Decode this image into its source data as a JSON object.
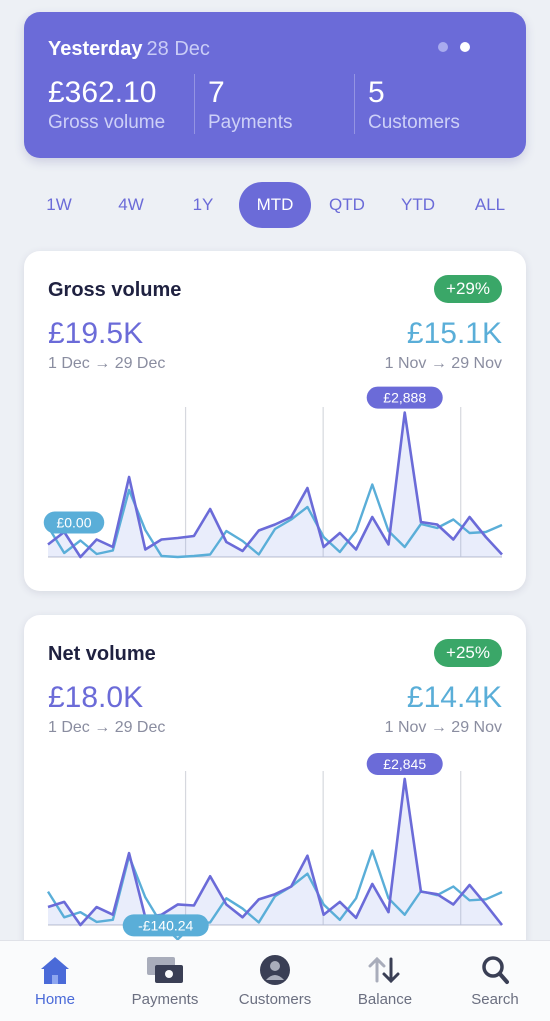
{
  "summary": {
    "day": "Yesterday",
    "date": "28 Dec",
    "stats": [
      {
        "value": "£362.10",
        "label": "Gross volume"
      },
      {
        "value": "7",
        "label": "Payments"
      },
      {
        "value": "5",
        "label": "Customers"
      }
    ],
    "page_dots": 2,
    "active_dot": 1
  },
  "ranges": [
    "1W",
    "4W",
    "1Y",
    "MTD",
    "QTD",
    "YTD",
    "ALL"
  ],
  "active_range": "MTD",
  "cards": [
    {
      "title": "Gross volume",
      "change": "+29%",
      "current_value": "£19.5K",
      "previous_value": "£15.1K",
      "current_range": "1 Dec → 29 Dec",
      "previous_range": "1 Nov → 29 Nov",
      "max_label": "£2,888",
      "min_label": "£0.00"
    },
    {
      "title": "Net volume",
      "change": "+25%",
      "current_value": "£18.0K",
      "previous_value": "£14.4K",
      "current_range": "1 Dec → 29 Dec",
      "previous_range": "1 Nov → 29 Nov",
      "max_label": "£2,845",
      "min_label": "-£140.24"
    }
  ],
  "chart_data": [
    {
      "type": "line",
      "title": "Gross volume",
      "x": [
        1,
        2,
        3,
        4,
        5,
        6,
        7,
        8,
        9,
        10,
        11,
        12,
        13,
        14,
        15,
        16,
        17,
        18,
        19,
        20,
        21,
        22,
        23,
        24,
        25,
        26,
        27,
        28,
        29
      ],
      "series": [
        {
          "values": [
            250,
            500,
            0,
            350,
            200,
            1600,
            150,
            350,
            380,
            420,
            960,
            300,
            120,
            530,
            650,
            800,
            1380,
            200,
            480,
            150,
            800,
            250,
            2888,
            700,
            650,
            350,
            800,
            400,
            50
          ]
        },
        {
          "values": [
            610,
            80,
            330,
            60,
            130,
            1340,
            540,
            20,
            0,
            20,
            50,
            520,
            320,
            50,
            560,
            750,
            1000,
            400,
            100,
            520,
            1450,
            520,
            200,
            660,
            580,
            750,
            480,
            500,
            640
          ]
        }
      ],
      "ylim": [
        0,
        3000
      ],
      "colors": {
        "current": "#6b6bd8",
        "previous": "#5aaed8"
      },
      "labels": {
        "max": "£2,888",
        "min": "£0.00"
      }
    },
    {
      "type": "line",
      "title": "Net volume",
      "x": [
        1,
        2,
        3,
        4,
        5,
        6,
        7,
        8,
        9,
        10,
        11,
        12,
        13,
        14,
        15,
        16,
        17,
        18,
        19,
        20,
        21,
        22,
        23,
        24,
        25,
        26,
        27,
        28,
        29
      ],
      "series": [
        {
          "values": [
            350,
            450,
            0,
            350,
            200,
            1400,
            150,
            200,
            400,
            380,
            950,
            400,
            150,
            500,
            600,
            750,
            1350,
            200,
            450,
            140,
            800,
            250,
            2845,
            650,
            600,
            400,
            780,
            400,
            0
          ]
        },
        {
          "values": [
            650,
            150,
            250,
            60,
            100,
            1340,
            540,
            20,
            -140.24,
            20,
            50,
            520,
            320,
            50,
            560,
            750,
            1000,
            400,
            100,
            520,
            1450,
            520,
            200,
            660,
            580,
            750,
            480,
            500,
            640
          ]
        }
      ],
      "ylim": [
        -150,
        3000
      ],
      "colors": {
        "current": "#6b6bd8",
        "previous": "#5aaed8"
      },
      "labels": {
        "max": "£2,845",
        "min": "-£140.24"
      }
    }
  ],
  "nav": [
    {
      "label": "Home",
      "icon": "home-icon",
      "active": true
    },
    {
      "label": "Payments",
      "icon": "payments-icon",
      "active": false
    },
    {
      "label": "Customers",
      "icon": "customers-icon",
      "active": false
    },
    {
      "label": "Balance",
      "icon": "balance-icon",
      "active": false
    },
    {
      "label": "Search",
      "icon": "search-icon",
      "active": false
    }
  ]
}
